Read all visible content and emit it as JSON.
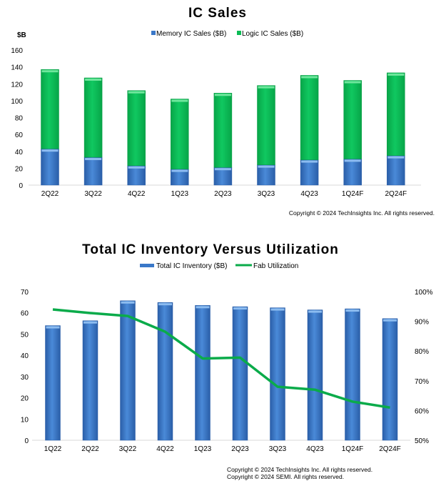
{
  "chart_data": [
    {
      "type": "bar",
      "stacked": true,
      "title": "IC Sales",
      "ylabel": "$B",
      "xlabel": "",
      "ylim": [
        0,
        160
      ],
      "yticks": [
        0,
        20,
        40,
        60,
        80,
        100,
        120,
        140,
        160
      ],
      "grid": false,
      "legend": "top",
      "categories": [
        "2Q22",
        "3Q22",
        "4Q22",
        "1Q23",
        "2Q23",
        "3Q23",
        "4Q23",
        "1Q24F",
        "2Q24F"
      ],
      "series": [
        {
          "name": "Memory IC Sales ($B)",
          "color": "#3a78c8",
          "values": [
            43,
            33,
            23,
            19,
            21,
            24,
            30,
            31,
            35
          ]
        },
        {
          "name": "Logic IC Sales ($B)",
          "color": "#0bbb55",
          "values": [
            94,
            94,
            89,
            83,
            88,
            94,
            100,
            93,
            98
          ]
        }
      ],
      "copyright": "Copyright © 2024 TechInsights Inc.  All rights reserved."
    },
    {
      "type": "bar",
      "title": "Total IC Inventory Versus Utilization",
      "xlabel": "",
      "ylim": [
        0,
        70
      ],
      "yticks": [
        0,
        10,
        20,
        30,
        40,
        50,
        60,
        70
      ],
      "y2lim": [
        50,
        100
      ],
      "y2ticks": [
        "50%",
        "60%",
        "70%",
        "80%",
        "90%",
        "100%"
      ],
      "grid": false,
      "legend": "top",
      "categories": [
        "1Q22",
        "2Q22",
        "3Q22",
        "4Q22",
        "1Q23",
        "2Q23",
        "3Q23",
        "4Q23",
        "1Q24F",
        "2Q24F"
      ],
      "series": [
        {
          "name": "Total IC Inventory ($B)",
          "type": "bar",
          "axis": "left",
          "color": "#3a78c8",
          "values": [
            54,
            56.3,
            65.7,
            64.9,
            63.5,
            62.9,
            62.4,
            61.4,
            61.9,
            57.3
          ]
        },
        {
          "name": "Fab Utilization",
          "type": "line",
          "axis": "right",
          "color": "#0aab4a",
          "values": [
            94,
            92.8,
            91.8,
            86.5,
            77.5,
            77.8,
            68,
            67,
            63,
            61
          ]
        }
      ],
      "copyright": [
        "Copyright © 2024 TechInsights Inc.  All rights reserved.",
        "Copyright © 2024 SEMI.  All rights reserved."
      ]
    }
  ]
}
